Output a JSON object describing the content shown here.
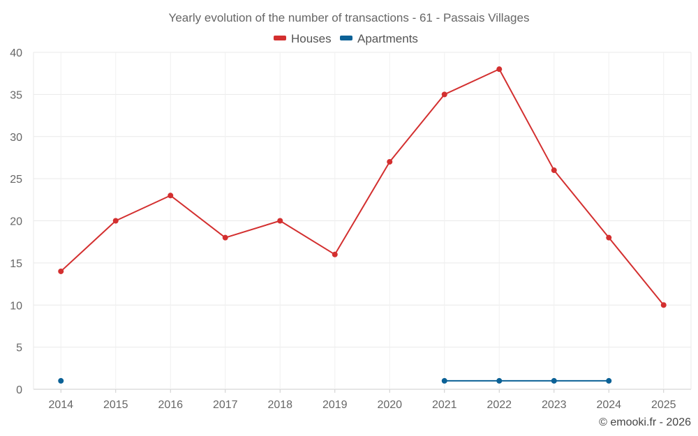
{
  "chart_data": {
    "type": "line",
    "title": "Yearly evolution of the number of transactions - 61 - Passais Villages",
    "xlabel": "",
    "ylabel": "",
    "categories": [
      "2014",
      "2015",
      "2016",
      "2017",
      "2018",
      "2019",
      "2020",
      "2021",
      "2022",
      "2023",
      "2024",
      "2025"
    ],
    "yticks": [
      "0",
      "5",
      "10",
      "15",
      "20",
      "25",
      "30",
      "35",
      "40"
    ],
    "ylim": [
      0,
      40
    ],
    "grid": true,
    "legend_position": "top-center",
    "series": [
      {
        "name": "Houses",
        "color": "#d32f2f",
        "values": [
          14,
          20,
          23,
          18,
          20,
          16,
          27,
          35,
          38,
          26,
          18,
          10
        ]
      },
      {
        "name": "Apartments",
        "color": "#0b6196",
        "values": [
          1,
          null,
          null,
          null,
          null,
          null,
          null,
          1,
          1,
          1,
          1,
          null
        ]
      }
    ]
  },
  "credit": "© emooki.fr - 2026"
}
